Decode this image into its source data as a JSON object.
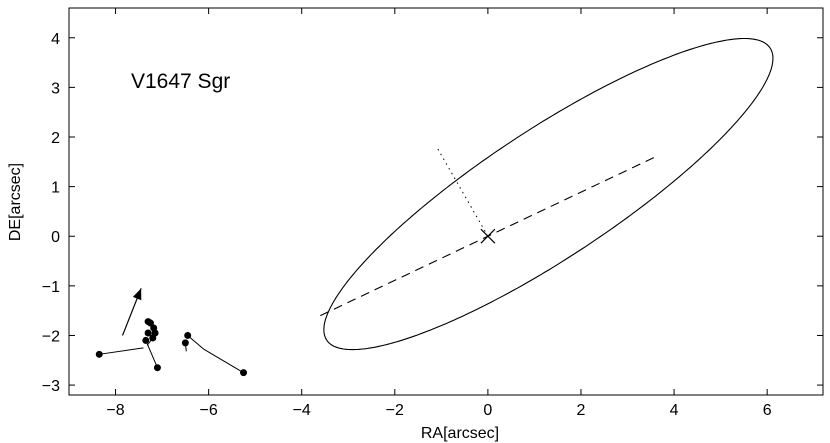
{
  "chart_data": {
    "type": "scatter",
    "title": "",
    "xlabel": "RA[arcsec]",
    "ylabel": "DE[arcsec]",
    "xlim": [
      -9,
      7.2
    ],
    "ylim": [
      -3.2,
      4.6
    ],
    "x_ticks": [
      -8,
      -6,
      -4,
      -2,
      0,
      2,
      4,
      6
    ],
    "y_ticks": [
      -3,
      -2,
      -1,
      0,
      1,
      2,
      3,
      4
    ],
    "x_tick_labels": [
      "−8",
      "−6",
      "−4",
      "−2",
      "0",
      "2",
      "4",
      "6"
    ],
    "y_tick_labels": [
      "−3",
      "−2",
      "−1",
      "0",
      "1",
      "2",
      "3",
      "4"
    ],
    "grid": false,
    "annotation": "V1647 Sgr",
    "orbit_ellipse": {
      "center": [
        1.3,
        0.85
      ],
      "semi_major": 5.6,
      "semi_minor": 1.32,
      "angle_deg": 31.5
    },
    "primary_star": [
      0,
      0
    ],
    "line_of_nodes": [
      [
        -3.6,
        -1.6
      ],
      [
        3.6,
        1.6
      ]
    ],
    "periastron_line": [
      [
        0,
        0
      ],
      [
        -1.1,
        1.8
      ]
    ],
    "observations": [
      [
        -8.35,
        -2.38
      ],
      [
        -7.3,
        -1.72
      ],
      [
        -7.25,
        -1.75
      ],
      [
        -7.18,
        -1.85
      ],
      [
        -7.15,
        -1.95
      ],
      [
        -7.3,
        -1.95
      ],
      [
        -7.2,
        -2.05
      ],
      [
        -7.35,
        -2.1
      ],
      [
        -7.1,
        -2.65
      ],
      [
        -6.5,
        -2.15
      ],
      [
        -6.45,
        -2.0
      ],
      [
        -5.25,
        -2.75
      ]
    ],
    "residual_segments": [
      [
        [
          -8.35,
          -2.38
        ],
        [
          -7.4,
          -2.25
        ]
      ],
      [
        [
          -7.35,
          -2.1
        ],
        [
          -7.1,
          -2.65
        ]
      ],
      [
        [
          -6.45,
          -2.0
        ],
        [
          -6.1,
          -2.28
        ]
      ],
      [
        [
          -6.1,
          -2.28
        ],
        [
          -5.25,
          -2.75
        ]
      ],
      [
        [
          -6.5,
          -2.15
        ],
        [
          -6.48,
          -2.32
        ]
      ],
      [
        [
          -7.2,
          -2.05
        ],
        [
          -7.32,
          -2.2
        ]
      ]
    ],
    "motion_arrow": [
      [
        -7.85,
        -2.0
      ],
      [
        -7.45,
        -1.05
      ]
    ]
  }
}
